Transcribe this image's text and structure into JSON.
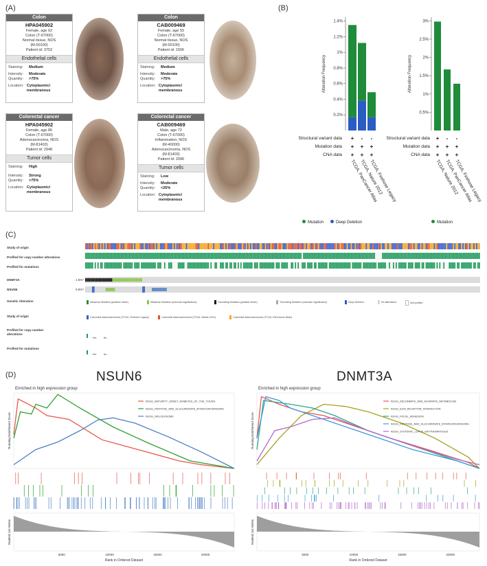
{
  "panels": {
    "a": "(A)",
    "b": "(B)",
    "c": "(C)",
    "d": "(D)"
  },
  "ihc": [
    {
      "header": "Colon",
      "id": "HPA045902",
      "info": [
        "Female, age 62",
        "Colon (T-67000)",
        "Normal tissue, NOS",
        "(M-00100)",
        "Patient id: 3753"
      ],
      "cells": "Endothelial cells",
      "staining": "Medium",
      "intensity": "Moderate",
      "quantity": ">75%",
      "location": "Cytoplasmic/ membranous"
    },
    {
      "header": "Colon",
      "id": "CAB009469",
      "info": [
        "Female, age 55",
        "Colon (T-67000)",
        "Normal tissue, NOS",
        "(M-00100)",
        "Patient id: 1506"
      ],
      "cells": "Endothelial cells",
      "staining": "Medium",
      "intensity": "Moderate",
      "quantity": ">75%",
      "location": "Cytoplasmic/ membranous"
    },
    {
      "header": "Colorectal cancer",
      "id": "HPA045902",
      "info": [
        "Female, age 86",
        "Colon (T-67000)",
        "Adenocarcinoma, NOS",
        "(M-81403)",
        "Patient id: 2948"
      ],
      "cells": "Tumor cells",
      "staining": "High",
      "intensity": "Strong",
      "quantity": ">75%",
      "location": "Cytoplasmic/ membranous"
    },
    {
      "header": "Colorectal cancer",
      "id": "CAB009469",
      "info": [
        "Male, age 72",
        "Colon (T-67000)",
        "Inflammation, NOS",
        "(M-40000)",
        "Adenocarcinoma, NOS",
        "(M-81403)",
        "Patient id: 2096"
      ],
      "cells": "Tumor cells",
      "staining": "Low",
      "intensity": "Moderate",
      "quantity": "<25%",
      "location": "Cytoplasmic/ membranous"
    }
  ],
  "ihc_keys": {
    "staining": "Staining:",
    "intensity": "Intensity:",
    "quantity": "Quantity:",
    "location": "Location:"
  },
  "chart_data": [
    {
      "type": "bar",
      "stacked": true,
      "ylabel": "Alteration Frequency",
      "categories": [
        "TCGA, PanCancer Atlas",
        "TCGA, Nature 2012",
        "TCGA, Firehose Legacy"
      ],
      "series": [
        {
          "name": "Mutation",
          "color": "#1e8c3a",
          "values": [
            1.18,
            0.74,
            0.32
          ]
        },
        {
          "name": "Deep Deletion",
          "color": "#2a5cc4",
          "values": [
            0.17,
            0.38,
            0.17
          ]
        }
      ],
      "yticks": [
        "0.2%",
        "0.4%",
        "0.6%",
        "0.8%",
        "1%",
        "1.2%",
        "1.4%"
      ],
      "ylim": [
        0,
        1.45
      ],
      "rows": [
        "Structural variant data",
        "Mutation data",
        "CNA data"
      ],
      "marks": [
        [
          "+",
          "-",
          "-"
        ],
        [
          "+",
          "+",
          "+"
        ],
        [
          "+",
          "+",
          "+"
        ]
      ]
    },
    {
      "type": "bar",
      "ylabel": "Alteration Frequency",
      "categories": [
        "TCGA, Nature 2012",
        "TCGA, PanCancer Atlas",
        "TCGA, Firehose Legacy"
      ],
      "series": [
        {
          "name": "Mutation",
          "color": "#1e8c3a",
          "values": [
            2.98,
            1.67,
            1.28
          ]
        }
      ],
      "yticks": [
        "0.5%",
        "1%",
        "1.5%",
        "2%",
        "2.5%",
        "3%"
      ],
      "ylim": [
        0,
        3.1
      ],
      "rows": [
        "Structural variant data",
        "Mutation data",
        "CNA data"
      ],
      "marks": [
        [
          "+",
          "-",
          "-"
        ],
        [
          "+",
          "+",
          "+"
        ],
        [
          "+",
          "+",
          "+"
        ]
      ]
    }
  ],
  "legend_b_left": [
    "Mutation",
    "Deep Deletion"
  ],
  "legend_b_right": [
    "Mutation"
  ],
  "oncoprint": {
    "tracks": [
      "Study of origin",
      "Profiled for copy number alterations",
      "Profiled for mutations"
    ],
    "genes": [
      {
        "name": "DNMT3A",
        "pct": "1.6%*"
      },
      {
        "name": "NSUN6",
        "pct": "0.9%*"
      }
    ],
    "alteration_title": "Genetic Alteration",
    "alteration_legend": [
      "Missense Mutation (putative driver)",
      "Missense Mutation (unknown significance)",
      "Truncating Mutation (putative driver)",
      "Truncating Mutation (unknown significance)",
      "Deep Deletion",
      "No alterations",
      "Not profiled"
    ],
    "study_title": "Study of origin",
    "study_legend": [
      "Colorectal Adenocarcinoma (TCGA, Firehose Legacy)",
      "Colorectal Adenocarcinoma (TCGA, Nature 2012)",
      "Colorectal Adenocarcinoma (TCGA, PanCancer Atlas)"
    ],
    "cna_title": "Profiled for copy number alterations",
    "mut_title": "Profiled for mutations",
    "yes": "Yes",
    "no": "No"
  },
  "gsea": [
    {
      "title": "NSUN6",
      "subtitle": "Enriched in high expression group",
      "legend": [
        "KEGG_MATURITY_ONSET_DIABETES_OF_THE_YOUNG",
        "KEGG_PENTOSE_AND_GLUCURONATE_INTERCONVERSIONS",
        "KEGG_SPLICEOSOME"
      ],
      "colors": [
        "#e8564a",
        "#2ca02c",
        "#4d7fc4"
      ]
    },
    {
      "title": "DNMT3A",
      "subtitle": "Enriched in high expression group",
      "legend": [
        "KEGG_ASCORBATE_AND_ALDARATE_METABOLISM",
        "KEGG_ECM_RECEPTOR_INTERACTION",
        "KEGG_FOCAL_ADHESION",
        "KEGG_PENTOSE_AND_GLUCURONATE_INTERCONVERSIONS",
        "KEGG_SYSTEMIC_LUPUS_ERYTHEMATOSUS"
      ],
      "colors": [
        "#e8564a",
        "#a8a220",
        "#2aa58a",
        "#3a9ad9",
        "#b268c8"
      ]
    }
  ],
  "gsea_axes": {
    "y_score": "Running Enrichment Score",
    "y_metric": "Ranked List Metric",
    "x": "Rank in Ordered Dataset",
    "xticks": [
      "5000",
      "10000",
      "15000",
      "20000"
    ]
  }
}
